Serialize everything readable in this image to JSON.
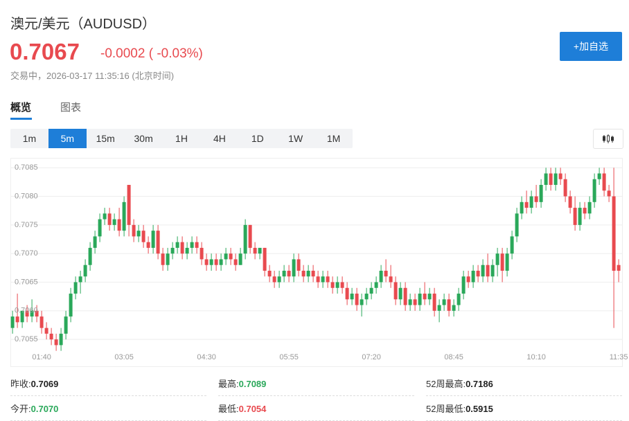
{
  "header": {
    "title": "澳元/美元（AUDUSD）",
    "price": "0.7067",
    "change": "-0.0002 ( -0.03%)",
    "status": "交易中，2026-03-17 11:35:16 (北京时间)",
    "button": "+加自选"
  },
  "tabs": [
    "概览",
    "图表"
  ],
  "periods": {
    "items": [
      "1m",
      "5m",
      "15m",
      "30m",
      "1H",
      "4H",
      "1D",
      "1W",
      "1M"
    ],
    "active": 1
  },
  "chart_data": {
    "type": "candlestick",
    "up_color": "#2aa85a",
    "down_color": "#e84a4f",
    "grid": true,
    "ylim": [
      0.70503,
      0.70866
    ],
    "yticks": [
      0.7055,
      {
        "value": 0.706,
        "label": "0.7060"
      },
      0.7065,
      {
        "value": 0.707,
        "label": "0.7070"
      },
      0.7075,
      {
        "value": 0.708,
        "label": "0.7080"
      },
      0.7085
    ],
    "xlim": [
      -0.3,
      125.7
    ],
    "xticks": [
      {
        "value": 6,
        "label": "01:40"
      },
      {
        "value": 23,
        "label": "03:05"
      },
      {
        "value": 40,
        "label": "04:30"
      },
      {
        "value": 57,
        "label": "05:55"
      },
      {
        "value": 74,
        "label": "07:20"
      },
      {
        "value": 91,
        "label": "08:45"
      },
      {
        "value": 108,
        "label": "10:10"
      },
      {
        "value": 125,
        "label": "11:35"
      }
    ],
    "ohlc": [
      [
        0.7057,
        0.706,
        0.7056,
        0.7059
      ],
      [
        0.7059,
        0.7063,
        0.7057,
        0.7058
      ],
      [
        0.7058,
        0.706,
        0.7057,
        0.706
      ],
      [
        0.706,
        0.7061,
        0.7058,
        0.7059
      ],
      [
        0.7059,
        0.7062,
        0.7058,
        0.706
      ],
      [
        0.706,
        0.7061,
        0.7058,
        0.7059
      ],
      [
        0.7059,
        0.706,
        0.7056,
        0.7057
      ],
      [
        0.7057,
        0.7058,
        0.7055,
        0.7056
      ],
      [
        0.7056,
        0.7057,
        0.7054,
        0.7055
      ],
      [
        0.7055,
        0.7056,
        0.7053,
        0.7054
      ],
      [
        0.7054,
        0.7057,
        0.7053,
        0.7056
      ],
      [
        0.7056,
        0.706,
        0.7055,
        0.7059
      ],
      [
        0.7059,
        0.7064,
        0.7058,
        0.7063
      ],
      [
        0.7063,
        0.7066,
        0.7062,
        0.7065
      ],
      [
        0.7065,
        0.7067,
        0.7063,
        0.7066
      ],
      [
        0.7066,
        0.7069,
        0.7065,
        0.7068
      ],
      [
        0.7068,
        0.7072,
        0.7067,
        0.7071
      ],
      [
        0.7071,
        0.7074,
        0.707,
        0.7073
      ],
      [
        0.7073,
        0.7077,
        0.7072,
        0.7076
      ],
      [
        0.7076,
        0.7078,
        0.7075,
        0.7077
      ],
      [
        0.7077,
        0.7078,
        0.7074,
        0.7075
      ],
      [
        0.7075,
        0.7077,
        0.7074,
        0.7076
      ],
      [
        0.7076,
        0.7078,
        0.7073,
        0.7074
      ],
      [
        0.7074,
        0.708,
        0.7073,
        0.7079
      ],
      [
        0.7082,
        0.7082,
        0.7073,
        0.7075
      ],
      [
        0.7075,
        0.7076,
        0.7072,
        0.7073
      ],
      [
        0.7073,
        0.7075,
        0.7072,
        0.7074
      ],
      [
        0.7074,
        0.7075,
        0.7071,
        0.7072
      ],
      [
        0.7072,
        0.7073,
        0.707,
        0.7071
      ],
      [
        0.7071,
        0.7075,
        0.707,
        0.7074
      ],
      [
        0.7074,
        0.7075,
        0.7069,
        0.707
      ],
      [
        0.707,
        0.7071,
        0.7067,
        0.7068
      ],
      [
        0.7068,
        0.7071,
        0.7067,
        0.707
      ],
      [
        0.707,
        0.7072,
        0.7069,
        0.7071
      ],
      [
        0.7071,
        0.7073,
        0.707,
        0.7072
      ],
      [
        0.7072,
        0.7073,
        0.7069,
        0.707
      ],
      [
        0.707,
        0.7072,
        0.7069,
        0.7071
      ],
      [
        0.7071,
        0.7073,
        0.707,
        0.7072
      ],
      [
        0.7072,
        0.7073,
        0.707,
        0.7071
      ],
      [
        0.7071,
        0.7072,
        0.7068,
        0.7069
      ],
      [
        0.7069,
        0.707,
        0.7067,
        0.7068
      ],
      [
        0.7068,
        0.707,
        0.7067,
        0.7069
      ],
      [
        0.7069,
        0.707,
        0.7067,
        0.7068
      ],
      [
        0.7068,
        0.707,
        0.7067,
        0.7069
      ],
      [
        0.7069,
        0.7071,
        0.7068,
        0.707
      ],
      [
        0.707,
        0.7071,
        0.7068,
        0.7069
      ],
      [
        0.7069,
        0.707,
        0.7067,
        0.7068
      ],
      [
        0.7068,
        0.7071,
        0.7068,
        0.707
      ],
      [
        0.707,
        0.7076,
        0.7069,
        0.7075
      ],
      [
        0.7075,
        0.7075,
        0.707,
        0.7071
      ],
      [
        0.7071,
        0.7072,
        0.7069,
        0.707
      ],
      [
        0.707,
        0.7071,
        0.7069,
        0.7071
      ],
      [
        0.7071,
        0.7071,
        0.7066,
        0.7067
      ],
      [
        0.7067,
        0.7068,
        0.7065,
        0.7066
      ],
      [
        0.7066,
        0.7067,
        0.7064,
        0.7065
      ],
      [
        0.7065,
        0.7067,
        0.7064,
        0.7066
      ],
      [
        0.7066,
        0.7068,
        0.7065,
        0.7067
      ],
      [
        0.7067,
        0.7068,
        0.7065,
        0.7066
      ],
      [
        0.7066,
        0.707,
        0.7065,
        0.7069
      ],
      [
        0.7069,
        0.707,
        0.7066,
        0.7067
      ],
      [
        0.7067,
        0.7068,
        0.7065,
        0.7066
      ],
      [
        0.7066,
        0.7068,
        0.7065,
        0.7067
      ],
      [
        0.7067,
        0.7068,
        0.7065,
        0.7066
      ],
      [
        0.7066,
        0.7067,
        0.7064,
        0.7065
      ],
      [
        0.7065,
        0.7067,
        0.7064,
        0.7066
      ],
      [
        0.7066,
        0.7067,
        0.7064,
        0.7065
      ],
      [
        0.7065,
        0.7066,
        0.7063,
        0.7064
      ],
      [
        0.7064,
        0.7066,
        0.7063,
        0.7065
      ],
      [
        0.7065,
        0.7066,
        0.7063,
        0.7064
      ],
      [
        0.7064,
        0.7065,
        0.7061,
        0.7062
      ],
      [
        0.7062,
        0.7064,
        0.7061,
        0.7063
      ],
      [
        0.7063,
        0.7064,
        0.706,
        0.7061
      ],
      [
        0.7061,
        0.7063,
        0.7059,
        0.7062
      ],
      [
        0.7062,
        0.7064,
        0.7061,
        0.7063
      ],
      [
        0.7063,
        0.7065,
        0.7062,
        0.7064
      ],
      [
        0.7064,
        0.7066,
        0.7063,
        0.7065
      ],
      [
        0.7065,
        0.7068,
        0.7064,
        0.7067
      ],
      [
        0.7067,
        0.7069,
        0.7065,
        0.7066
      ],
      [
        0.7066,
        0.7068,
        0.7064,
        0.7065
      ],
      [
        0.7065,
        0.7066,
        0.7061,
        0.7062
      ],
      [
        0.7062,
        0.7065,
        0.7061,
        0.7064
      ],
      [
        0.7064,
        0.7065,
        0.706,
        0.7061
      ],
      [
        0.7061,
        0.7063,
        0.706,
        0.7062
      ],
      [
        0.7062,
        0.7063,
        0.706,
        0.7061
      ],
      [
        0.7061,
        0.7064,
        0.706,
        0.7063
      ],
      [
        0.7063,
        0.7065,
        0.7061,
        0.7062
      ],
      [
        0.7062,
        0.7064,
        0.7061,
        0.7063
      ],
      [
        0.7063,
        0.7064,
        0.7059,
        0.706
      ],
      [
        0.706,
        0.7062,
        0.7058,
        0.7061
      ],
      [
        0.7061,
        0.7063,
        0.706,
        0.7062
      ],
      [
        0.7062,
        0.7063,
        0.7059,
        0.706
      ],
      [
        0.706,
        0.7062,
        0.7059,
        0.7061
      ],
      [
        0.7061,
        0.7064,
        0.706,
        0.7063
      ],
      [
        0.7063,
        0.7067,
        0.7062,
        0.7066
      ],
      [
        0.7066,
        0.7067,
        0.7064,
        0.7065
      ],
      [
        0.7065,
        0.7068,
        0.7064,
        0.7067
      ],
      [
        0.7067,
        0.7068,
        0.7065,
        0.7066
      ],
      [
        0.7066,
        0.7069,
        0.7065,
        0.7068
      ],
      [
        0.7068,
        0.707,
        0.7065,
        0.7066
      ],
      [
        0.7066,
        0.7069,
        0.7065,
        0.7068
      ],
      [
        0.7068,
        0.7071,
        0.7066,
        0.707
      ],
      [
        0.707,
        0.7071,
        0.7065,
        0.7067
      ],
      [
        0.7067,
        0.7071,
        0.7066,
        0.707
      ],
      [
        0.707,
        0.7074,
        0.7069,
        0.7073
      ],
      [
        0.7073,
        0.7078,
        0.7072,
        0.7077
      ],
      [
        0.7077,
        0.708,
        0.7076,
        0.7079
      ],
      [
        0.7079,
        0.7081,
        0.7077,
        0.7078
      ],
      [
        0.7078,
        0.7081,
        0.7077,
        0.708
      ],
      [
        0.708,
        0.7082,
        0.7078,
        0.7079
      ],
      [
        0.7079,
        0.7083,
        0.7078,
        0.7082
      ],
      [
        0.7082,
        0.7085,
        0.7081,
        0.7084
      ],
      [
        0.7084,
        0.7085,
        0.7081,
        0.7082
      ],
      [
        0.7082,
        0.7085,
        0.7081,
        0.7084
      ],
      [
        0.7084,
        0.7085,
        0.7082,
        0.7083
      ],
      [
        0.7083,
        0.7084,
        0.7079,
        0.708
      ],
      [
        0.708,
        0.7081,
        0.7077,
        0.7078
      ],
      [
        0.7078,
        0.708,
        0.7074,
        0.7075
      ],
      [
        0.7075,
        0.7079,
        0.7074,
        0.7078
      ],
      [
        0.7078,
        0.7079,
        0.7076,
        0.7077
      ],
      [
        0.7077,
        0.708,
        0.7076,
        0.7079
      ],
      [
        0.7079,
        0.7084,
        0.7078,
        0.7083
      ],
      [
        0.7083,
        0.7085,
        0.7082,
        0.7084
      ],
      [
        0.7084,
        0.7085,
        0.708,
        0.7081
      ],
      [
        0.7081,
        0.7082,
        0.7079,
        0.708
      ],
      [
        0.708,
        0.7085,
        0.7057,
        0.7067
      ],
      [
        0.7068,
        0.7069,
        0.7065,
        0.7067
      ]
    ]
  },
  "stats": [
    [
      {
        "label": "昨收:",
        "value": "0.7069",
        "tone": "plain"
      },
      {
        "label": "最高:",
        "value": "0.7089",
        "tone": "up"
      },
      {
        "label": "52周最高:",
        "value": "0.7186",
        "tone": "plain"
      }
    ],
    [
      {
        "label": "今开:",
        "value": "0.7070",
        "tone": "up"
      },
      {
        "label": "最低:",
        "value": "0.7054",
        "tone": "down"
      },
      {
        "label": "52周最低:",
        "value": "0.5915",
        "tone": "plain"
      }
    ]
  ]
}
